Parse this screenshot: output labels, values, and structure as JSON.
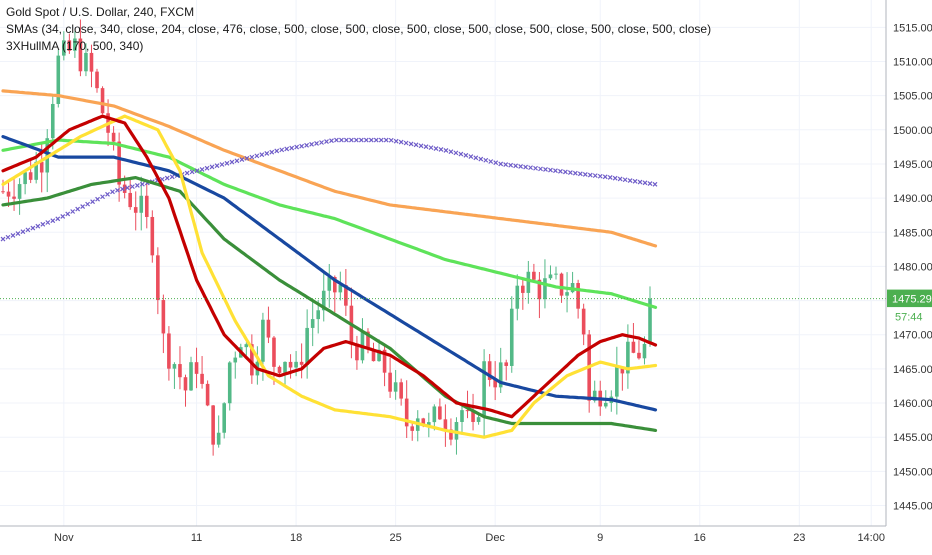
{
  "legend": {
    "symbol": "Gold Spot / U.S. Dollar, 240, FXCM",
    "smas": "SMAs (34, close, 340, close, 204, close, 476, close, 500, close, 500, close, 500, close, 500, close, 500, close, 500, close, 500, close)",
    "hull": "3XHullMA (170, 500, 340)"
  },
  "price_label": "1475.29",
  "countdown_label": "57:44",
  "colors": {
    "up": "#53b987",
    "down": "#eb4d5c",
    "price_label_bg": "#4caf50",
    "orange": "#f9a454",
    "light_green": "#5ee35a",
    "blue": "#1848a0",
    "mid_green": "#3a8f3a",
    "yellow": "#ffe135",
    "red": "#c40000",
    "purple": "#6e5cc8",
    "price_line": "#4caf50"
  },
  "chart_data": {
    "type": "candlestick",
    "title": "Gold Spot / U.S. Dollar, 240, FXCM",
    "ylim": [
      1442,
      1519
    ],
    "y_ticks": [
      1445,
      1450,
      1455,
      1460,
      1465,
      1470,
      1475,
      1480,
      1485,
      1490,
      1495,
      1500,
      1505,
      1510,
      1515
    ],
    "x_ticks": [
      {
        "label": "Nov",
        "bar": 11
      },
      {
        "label": "11",
        "bar": 35
      },
      {
        "label": "18",
        "bar": 53
      },
      {
        "label": "25",
        "bar": 71
      },
      {
        "label": "Dec",
        "bar": 89
      },
      {
        "label": "9",
        "bar": 108
      },
      {
        "label": "16",
        "bar": 126
      },
      {
        "label": "23",
        "bar": 144
      },
      {
        "label": "14:00",
        "bar": 157
      }
    ],
    "bar_count_visible": 162,
    "last_price": 1475.29,
    "candle_keypoints": [
      [
        0,
        1491
      ],
      [
        4,
        1493
      ],
      [
        7,
        1496
      ],
      [
        10,
        1510
      ],
      [
        13,
        1512
      ],
      [
        16,
        1508
      ],
      [
        19,
        1500
      ],
      [
        21,
        1492
      ],
      [
        23,
        1490
      ],
      [
        25,
        1488
      ],
      [
        27,
        1484
      ],
      [
        29,
        1469
      ],
      [
        31,
        1466
      ],
      [
        33,
        1462
      ],
      [
        35,
        1466
      ],
      [
        37,
        1458
      ],
      [
        39,
        1454
      ],
      [
        41,
        1466
      ],
      [
        43,
        1470
      ],
      [
        45,
        1466
      ],
      [
        47,
        1471
      ],
      [
        49,
        1466
      ],
      [
        51,
        1467
      ],
      [
        53,
        1464
      ],
      [
        55,
        1471
      ],
      [
        57,
        1474
      ],
      [
        59,
        1476
      ],
      [
        61,
        1477
      ],
      [
        63,
        1469
      ],
      [
        65,
        1468
      ],
      [
        67,
        1466
      ],
      [
        69,
        1465
      ],
      [
        71,
        1461
      ],
      [
        73,
        1457
      ],
      [
        75,
        1459
      ],
      [
        77,
        1456
      ],
      [
        79,
        1459
      ],
      [
        81,
        1457
      ],
      [
        83,
        1459
      ],
      [
        85,
        1455
      ],
      [
        87,
        1465
      ],
      [
        89,
        1464
      ],
      [
        91,
        1465
      ],
      [
        93,
        1478
      ],
      [
        95,
        1478
      ],
      [
        97,
        1477
      ],
      [
        99,
        1477
      ],
      [
        101,
        1477
      ],
      [
        103,
        1477
      ],
      [
        105,
        1471
      ],
      [
        106,
        1460
      ],
      [
        108,
        1462
      ],
      [
        110,
        1463
      ],
      [
        112,
        1466
      ],
      [
        114,
        1467
      ],
      [
        116,
        1468
      ],
      [
        117,
        1475.29
      ]
    ],
    "series": [
      {
        "name": "SMA",
        "color": "orange",
        "type": "line",
        "points": [
          [
            0,
            1505.7
          ],
          [
            10,
            1505
          ],
          [
            20,
            1503.5
          ],
          [
            30,
            1500.5
          ],
          [
            40,
            1497
          ],
          [
            50,
            1494
          ],
          [
            60,
            1491
          ],
          [
            70,
            1489
          ],
          [
            80,
            1488
          ],
          [
            90,
            1487
          ],
          [
            100,
            1486
          ],
          [
            110,
            1485
          ],
          [
            118,
            1483
          ]
        ]
      },
      {
        "name": "SMA",
        "color": "light_green",
        "type": "line",
        "points": [
          [
            0,
            1497
          ],
          [
            10,
            1498.5
          ],
          [
            20,
            1498
          ],
          [
            30,
            1496
          ],
          [
            40,
            1492
          ],
          [
            50,
            1489
          ],
          [
            60,
            1487
          ],
          [
            70,
            1484
          ],
          [
            80,
            1481
          ],
          [
            90,
            1479
          ],
          [
            100,
            1477
          ],
          [
            110,
            1476
          ],
          [
            118,
            1474
          ]
        ]
      },
      {
        "name": "SMA",
        "color": "purple",
        "type": "cross",
        "points": [
          [
            0,
            1484
          ],
          [
            10,
            1487
          ],
          [
            20,
            1491
          ],
          [
            30,
            1493
          ],
          [
            40,
            1495
          ],
          [
            50,
            1497
          ],
          [
            60,
            1498.5
          ],
          [
            70,
            1498.5
          ],
          [
            80,
            1497
          ],
          [
            90,
            1495
          ],
          [
            100,
            1494
          ],
          [
            110,
            1493
          ],
          [
            118,
            1492
          ]
        ]
      },
      {
        "name": "SMA",
        "color": "blue",
        "type": "line",
        "points": [
          [
            0,
            1499
          ],
          [
            10,
            1496
          ],
          [
            20,
            1496
          ],
          [
            30,
            1494
          ],
          [
            40,
            1490
          ],
          [
            50,
            1484
          ],
          [
            60,
            1478
          ],
          [
            70,
            1473
          ],
          [
            80,
            1468
          ],
          [
            90,
            1463
          ],
          [
            100,
            1461
          ],
          [
            110,
            1460.5
          ],
          [
            118,
            1459
          ]
        ]
      },
      {
        "name": "SMA",
        "color": "mid_green",
        "type": "line",
        "points": [
          [
            0,
            1489
          ],
          [
            8,
            1490
          ],
          [
            16,
            1492
          ],
          [
            24,
            1493
          ],
          [
            32,
            1491
          ],
          [
            40,
            1484
          ],
          [
            50,
            1478
          ],
          [
            60,
            1473
          ],
          [
            70,
            1468
          ],
          [
            80,
            1461
          ],
          [
            87,
            1458
          ],
          [
            92,
            1457
          ],
          [
            100,
            1457
          ],
          [
            110,
            1457
          ],
          [
            118,
            1456
          ]
        ]
      },
      {
        "name": "SMA",
        "color": "yellow",
        "type": "line",
        "points": [
          [
            0,
            1492
          ],
          [
            8,
            1496
          ],
          [
            14,
            1499
          ],
          [
            22,
            1502
          ],
          [
            28,
            1500
          ],
          [
            32,
            1494
          ],
          [
            36,
            1482
          ],
          [
            42,
            1472
          ],
          [
            48,
            1464
          ],
          [
            54,
            1461
          ],
          [
            60,
            1459
          ],
          [
            70,
            1458
          ],
          [
            80,
            1456
          ],
          [
            87,
            1455
          ],
          [
            92,
            1456
          ],
          [
            96,
            1460
          ],
          [
            102,
            1464
          ],
          [
            108,
            1466
          ],
          [
            113,
            1465
          ],
          [
            118,
            1465.5
          ]
        ]
      },
      {
        "name": "SMA",
        "color": "red",
        "type": "line",
        "points": [
          [
            0,
            1494
          ],
          [
            6,
            1496
          ],
          [
            12,
            1500
          ],
          [
            18,
            1502
          ],
          [
            22,
            1501
          ],
          [
            26,
            1496
          ],
          [
            30,
            1490
          ],
          [
            35,
            1478
          ],
          [
            40,
            1470
          ],
          [
            46,
            1465
          ],
          [
            50,
            1464
          ],
          [
            54,
            1465
          ],
          [
            58,
            1468
          ],
          [
            62,
            1469
          ],
          [
            66,
            1468
          ],
          [
            70,
            1467
          ],
          [
            76,
            1464
          ],
          [
            82,
            1460
          ],
          [
            88,
            1459
          ],
          [
            92,
            1458
          ],
          [
            96,
            1461
          ],
          [
            100,
            1464
          ],
          [
            104,
            1467
          ],
          [
            108,
            1469
          ],
          [
            112,
            1470
          ],
          [
            115,
            1469.5
          ],
          [
            118,
            1468.5
          ]
        ]
      }
    ]
  }
}
